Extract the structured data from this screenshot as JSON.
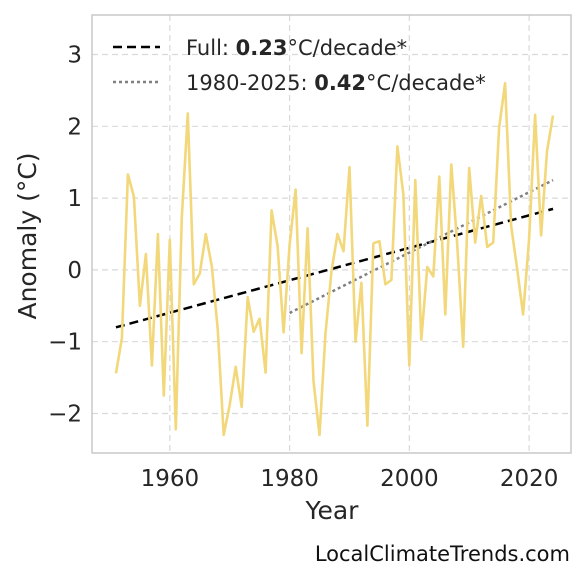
{
  "chart_data": {
    "type": "line",
    "xlabel": "Year",
    "ylabel": "Anomaly (°C)",
    "xlim": [
      1947,
      2027
    ],
    "ylim": [
      -2.55,
      3.55
    ],
    "xticks": [
      1960,
      1980,
      2000,
      2020
    ],
    "yticks": [
      -2,
      -1,
      0,
      1,
      2,
      3
    ],
    "ytick_labels": [
      "−2",
      "−1",
      "0",
      "1",
      "2",
      "3"
    ],
    "grid": true,
    "legend_position": "top-left",
    "source": "LocalClimateTrends.com",
    "colors": {
      "series": "#f2d87a",
      "full_trend": "#000000",
      "recent_trend": "#808080",
      "grid": "#d9d9d9",
      "frame": "#c8c8c8"
    },
    "series": [
      {
        "x": [
          1951,
          1952,
          1953,
          1954,
          1955,
          1956,
          1957,
          1958,
          1959,
          1960,
          1961,
          1962,
          1963,
          1964,
          1965,
          1966,
          1967,
          1968,
          1969,
          1970,
          1971,
          1972,
          1973,
          1974,
          1975,
          1976,
          1977,
          1978,
          1979,
          1980,
          1981,
          1982,
          1983,
          1984,
          1985,
          1986,
          1987,
          1988,
          1989,
          1990,
          1991,
          1992,
          1993,
          1994,
          1995,
          1996,
          1997,
          1998,
          1999,
          2000,
          2001,
          2002,
          2003,
          2004,
          2005,
          2006,
          2007,
          2008,
          2009,
          2010,
          2011,
          2012,
          2013,
          2014,
          2015,
          2016,
          2017,
          2018,
          2019,
          2020,
          2021,
          2022,
          2023,
          2024
        ],
        "values": [
          -1.44,
          -0.95,
          1.33,
          1.02,
          -0.5,
          0.22,
          -1.33,
          0.5,
          -1.75,
          0.42,
          -2.22,
          0.73,
          2.18,
          -0.2,
          -0.05,
          0.5,
          0.05,
          -0.82,
          -2.3,
          -1.88,
          -1.35,
          -1.91,
          -0.38,
          -0.86,
          -0.68,
          -1.43,
          0.83,
          0.33,
          -0.87,
          0.35,
          1.12,
          -1.16,
          0.58,
          -1.55,
          -2.3,
          -0.88,
          -0.02,
          0.5,
          0.26,
          1.43,
          -1.0,
          -0.18,
          -2.17,
          0.37,
          0.4,
          -0.2,
          -0.14,
          1.72,
          1.05,
          -1.33,
          1.25,
          -0.97,
          0.04,
          -0.09,
          1.3,
          -0.62,
          1.47,
          0.36,
          -1.07,
          1.42,
          0.38,
          1.03,
          0.32,
          0.38,
          1.98,
          2.6,
          0.62,
          0.02,
          -0.62,
          0.43,
          2.16,
          0.48,
          1.65,
          2.15
        ]
      }
    ],
    "trend_lines": [
      {
        "label_prefix": "Full: ",
        "label_value": "0.23",
        "label_suffix": "°C/decade*",
        "x": [
          1951,
          2024
        ],
        "y": [
          -0.8,
          0.85
        ],
        "style": "dashed"
      },
      {
        "label_prefix": "1980-2025: ",
        "label_value": "0.42",
        "label_suffix": "°C/decade*",
        "x": [
          1980,
          2024
        ],
        "y": [
          -0.6,
          1.25
        ],
        "style": "dotted"
      }
    ]
  }
}
